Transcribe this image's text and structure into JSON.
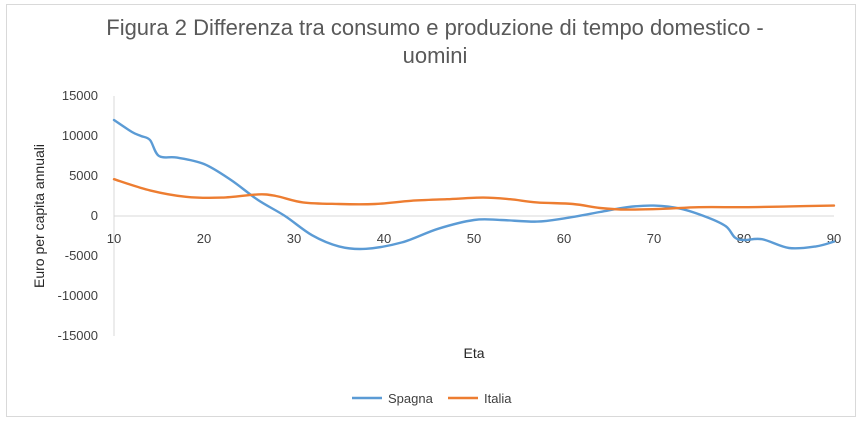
{
  "chart_data": {
    "type": "line",
    "title": "Figura 2 Differenza tra consumo e produzione di tempo domestico - uomini",
    "xlabel": "Eta",
    "ylabel": "Euro per capita annuali",
    "xlim": [
      10,
      90
    ],
    "ylim": [
      -15000,
      15000
    ],
    "x_ticks": [
      "10",
      "20",
      "30",
      "40",
      "50",
      "60",
      "70",
      "80",
      "90"
    ],
    "y_ticks": [
      "15000",
      "10000",
      "5000",
      "0",
      "-5000",
      "-10000",
      "-15000"
    ],
    "legend_position": "bottom",
    "series": [
      {
        "name": "Spagna",
        "color": "#5b9bd5",
        "points": [
          [
            10,
            12000
          ],
          [
            12,
            10500
          ],
          [
            13,
            10000
          ],
          [
            14,
            9500
          ],
          [
            15,
            7500
          ],
          [
            17,
            7300
          ],
          [
            20,
            6500
          ],
          [
            23,
            4500
          ],
          [
            26,
            2000
          ],
          [
            29,
            0
          ],
          [
            32,
            -2400
          ],
          [
            35,
            -3800
          ],
          [
            38,
            -4100
          ],
          [
            42,
            -3300
          ],
          [
            46,
            -1600
          ],
          [
            50,
            -500
          ],
          [
            53,
            -500
          ],
          [
            57,
            -700
          ],
          [
            60,
            -300
          ],
          [
            64,
            500
          ],
          [
            67,
            1100
          ],
          [
            70,
            1300
          ],
          [
            73,
            900
          ],
          [
            76,
            -200
          ],
          [
            78,
            -1300
          ],
          [
            79,
            -2700
          ],
          [
            80,
            -3000
          ],
          [
            82,
            -2900
          ],
          [
            85,
            -4000
          ],
          [
            88,
            -3800
          ],
          [
            90,
            -3200
          ]
        ]
      },
      {
        "name": "Italia",
        "color": "#ed7d31",
        "points": [
          [
            10,
            4600
          ],
          [
            14,
            3200
          ],
          [
            18,
            2400
          ],
          [
            22,
            2300
          ],
          [
            26,
            2700
          ],
          [
            28,
            2500
          ],
          [
            31,
            1700
          ],
          [
            35,
            1500
          ],
          [
            39,
            1500
          ],
          [
            43,
            1900
          ],
          [
            47,
            2100
          ],
          [
            51,
            2300
          ],
          [
            54,
            2100
          ],
          [
            57,
            1700
          ],
          [
            61,
            1500
          ],
          [
            64,
            1000
          ],
          [
            67,
            800
          ],
          [
            71,
            900
          ],
          [
            75,
            1100
          ],
          [
            80,
            1100
          ],
          [
            85,
            1200
          ],
          [
            90,
            1300
          ]
        ]
      }
    ]
  }
}
